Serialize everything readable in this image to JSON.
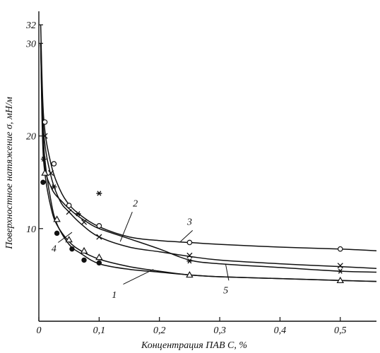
{
  "chart_data": {
    "type": "line",
    "xlabel": "Концентрация ПАВ  C, %",
    "ylabel": "Поверхностное  натяжение  σ, мН/м",
    "xlim": [
      0,
      0.56
    ],
    "ylim": [
      0,
      33
    ],
    "x_ticks": [
      {
        "value": 0,
        "label": "0"
      },
      {
        "value": 0.1,
        "label": "0,1"
      },
      {
        "value": 0.2,
        "label": "0,2"
      },
      {
        "value": 0.3,
        "label": "0,3"
      },
      {
        "value": 0.4,
        "label": "0,4"
      },
      {
        "value": 0.5,
        "label": "0,5"
      }
    ],
    "y_ticks": [
      {
        "value": 10,
        "label": "10"
      },
      {
        "value": 20,
        "label": "20"
      },
      {
        "value": 30,
        "label": "30"
      },
      {
        "value": 32,
        "label": "32"
      }
    ],
    "grid": false,
    "legend": "none",
    "series": [
      {
        "name": "1",
        "marker": "filled-circle",
        "label_at": [
          0.125,
          2.5
        ],
        "curve": [
          [
            0.003,
            30
          ],
          [
            0.006,
            22
          ],
          [
            0.01,
            17.5
          ],
          [
            0.02,
            13
          ],
          [
            0.03,
            10.5
          ],
          [
            0.05,
            8.3
          ],
          [
            0.07,
            7.3
          ],
          [
            0.1,
            6.2
          ],
          [
            0.15,
            5.6
          ],
          [
            0.2,
            5.3
          ],
          [
            0.25,
            5.0
          ],
          [
            0.3,
            4.8
          ],
          [
            0.4,
            4.6
          ],
          [
            0.5,
            4.4
          ],
          [
            0.56,
            4.3
          ]
        ],
        "markers": [
          [
            0.007,
            15
          ],
          [
            0.03,
            9.5
          ],
          [
            0.055,
            7.8
          ],
          [
            0.075,
            6.6
          ],
          [
            0.1,
            6.3
          ]
        ]
      },
      {
        "name": "2",
        "marker": "cross",
        "label_at": [
          0.16,
          12.4
        ],
        "curve": [
          [
            0.003,
            30
          ],
          [
            0.008,
            20.5
          ],
          [
            0.02,
            15.7
          ],
          [
            0.035,
            13
          ],
          [
            0.05,
            11.8
          ],
          [
            0.07,
            10.5
          ],
          [
            0.1,
            9.1
          ],
          [
            0.15,
            8.0
          ],
          [
            0.2,
            7.5
          ],
          [
            0.25,
            7.0
          ],
          [
            0.3,
            6.6
          ],
          [
            0.4,
            6.2
          ],
          [
            0.5,
            5.9
          ],
          [
            0.56,
            5.7
          ]
        ],
        "markers": [
          [
            0.01,
            20
          ],
          [
            0.02,
            16
          ],
          [
            0.05,
            11.8
          ],
          [
            0.075,
            10.7
          ],
          [
            0.1,
            9.1
          ],
          [
            0.25,
            7.1
          ],
          [
            0.5,
            6.0
          ]
        ]
      },
      {
        "name": "3",
        "marker": "open-circle",
        "label_at": [
          0.25,
          10.4
        ],
        "curve": [
          [
            0.003,
            32
          ],
          [
            0.008,
            22
          ],
          [
            0.02,
            17
          ],
          [
            0.035,
            14.2
          ],
          [
            0.05,
            12.6
          ],
          [
            0.07,
            11.4
          ],
          [
            0.1,
            10.2
          ],
          [
            0.15,
            9.1
          ],
          [
            0.2,
            8.7
          ],
          [
            0.25,
            8.5
          ],
          [
            0.3,
            8.3
          ],
          [
            0.4,
            8.0
          ],
          [
            0.5,
            7.8
          ],
          [
            0.56,
            7.6
          ]
        ],
        "markers": [
          [
            0.01,
            21.5
          ],
          [
            0.025,
            17
          ],
          [
            0.05,
            12.5
          ],
          [
            0.1,
            10.3
          ],
          [
            0.25,
            8.5
          ],
          [
            0.5,
            7.8
          ]
        ]
      },
      {
        "name": "4",
        "marker": "open-triangle",
        "label_at": [
          0.025,
          7.5
        ],
        "curve": [
          [
            0.003,
            30
          ],
          [
            0.006,
            20
          ],
          [
            0.01,
            16
          ],
          [
            0.02,
            12.3
          ],
          [
            0.03,
            10.4
          ],
          [
            0.05,
            8.6
          ],
          [
            0.07,
            7.6
          ],
          [
            0.1,
            6.7
          ],
          [
            0.15,
            5.9
          ],
          [
            0.2,
            5.4
          ],
          [
            0.25,
            5.0
          ],
          [
            0.3,
            4.8
          ],
          [
            0.4,
            4.6
          ],
          [
            0.5,
            4.4
          ],
          [
            0.56,
            4.3
          ]
        ],
        "markers": [
          [
            0.01,
            16
          ],
          [
            0.03,
            11
          ],
          [
            0.05,
            8.8
          ],
          [
            0.075,
            7.6
          ],
          [
            0.1,
            6.9
          ],
          [
            0.25,
            5.0
          ],
          [
            0.5,
            4.4
          ]
        ]
      },
      {
        "name": "5",
        "marker": "asterisk",
        "label_at": [
          0.31,
          3.0
        ],
        "curve": [
          [
            0.003,
            30
          ],
          [
            0.008,
            18
          ],
          [
            0.02,
            14.5
          ],
          [
            0.04,
            12.8
          ],
          [
            0.06,
            11.6
          ],
          [
            0.08,
            10.7
          ],
          [
            0.1,
            10.0
          ],
          [
            0.15,
            8.9
          ],
          [
            0.2,
            7.8
          ],
          [
            0.25,
            6.6
          ],
          [
            0.3,
            6.2
          ],
          [
            0.4,
            5.8
          ],
          [
            0.5,
            5.4
          ],
          [
            0.56,
            5.3
          ]
        ],
        "markers": [
          [
            0.008,
            17.5
          ],
          [
            0.025,
            14.5
          ],
          [
            0.065,
            11.6
          ],
          [
            0.1,
            13.8
          ],
          [
            0.25,
            6.5
          ],
          [
            0.5,
            5.4
          ]
        ]
      }
    ]
  }
}
